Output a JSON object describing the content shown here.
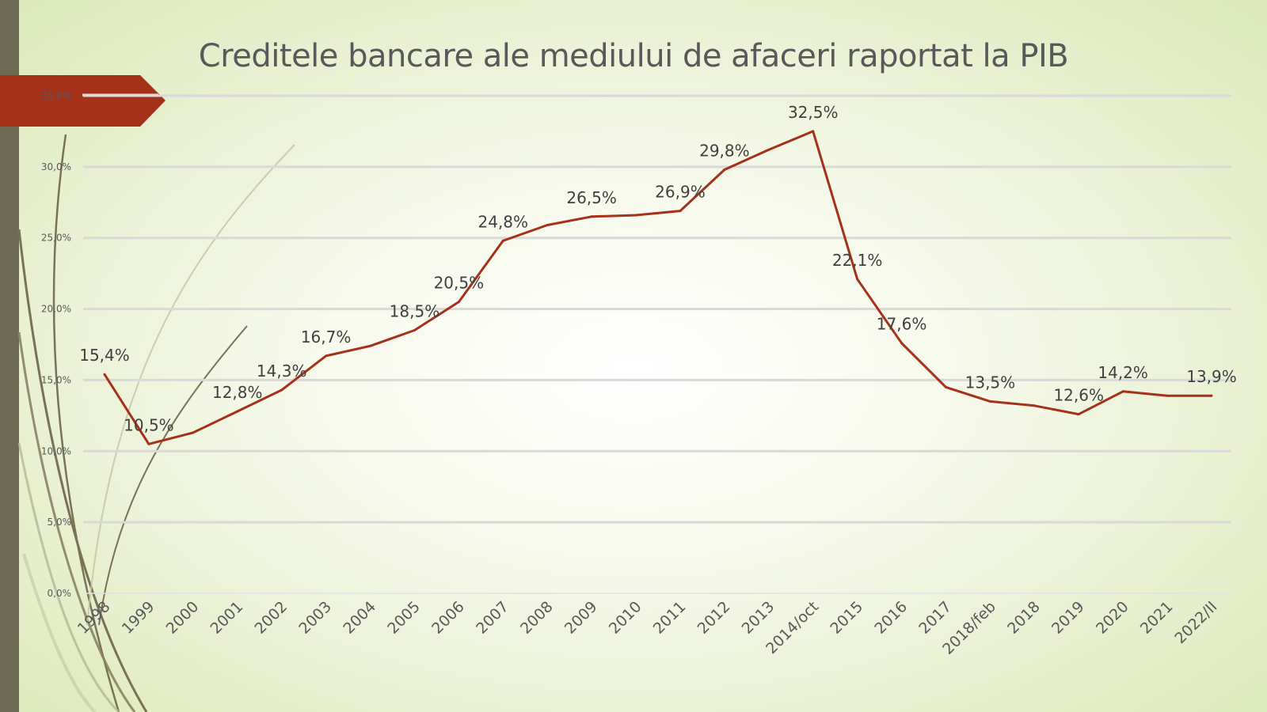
{
  "chart_data": {
    "type": "line",
    "title": "Creditele bancare ale mediului de afaceri raportat la PIB",
    "categories": [
      "1998",
      "1999",
      "2000",
      "2001",
      "2002",
      "2003",
      "2004",
      "2005",
      "2006",
      "2007",
      "2008",
      "2009",
      "2010",
      "2011",
      "2012",
      "2013",
      "2014/oct",
      "2015",
      "2016",
      "2017",
      "2018/feb",
      "2018",
      "2019",
      "2020",
      "2021",
      "2022/II"
    ],
    "series": [
      {
        "values": [
          15.4,
          10.5,
          11.3,
          12.8,
          14.3,
          16.7,
          17.4,
          18.5,
          20.5,
          24.8,
          25.9,
          26.5,
          26.6,
          26.9,
          29.8,
          31.2,
          32.5,
          22.1,
          17.6,
          14.5,
          13.5,
          13.2,
          12.6,
          14.2,
          13.9,
          13.9
        ],
        "color": "#a5311a"
      }
    ],
    "data_labels": [
      {
        "index": 0,
        "text": "15,4%"
      },
      {
        "index": 1,
        "text": "10,5%"
      },
      {
        "index": 3,
        "text": "12,8%"
      },
      {
        "index": 4,
        "text": "14,3%"
      },
      {
        "index": 5,
        "text": "16,7%"
      },
      {
        "index": 7,
        "text": "18,5%"
      },
      {
        "index": 8,
        "text": "20,5%"
      },
      {
        "index": 9,
        "text": "24,8%"
      },
      {
        "index": 11,
        "text": "26,5%"
      },
      {
        "index": 13,
        "text": "26,9%"
      },
      {
        "index": 14,
        "text": "29,8%"
      },
      {
        "index": 16,
        "text": "32,5%"
      },
      {
        "index": 17,
        "text": "22,1%"
      },
      {
        "index": 18,
        "text": "17,6%"
      },
      {
        "index": 20,
        "text": "13,5%"
      },
      {
        "index": 22,
        "text": "12,6%"
      },
      {
        "index": 23,
        "text": "14,2%"
      },
      {
        "index": 25,
        "text": "13,9%"
      }
    ],
    "yticks": [
      "0,0%",
      "5,0%",
      "10,0%",
      "15,0%",
      "20,0%",
      "25,0%",
      "30,0%",
      "35,0%"
    ],
    "ylim": [
      0,
      35
    ],
    "grid": true,
    "legend": "none",
    "xlabel": "",
    "ylabel": ""
  },
  "colors": {
    "accent": "#a5311a",
    "grid": "#d9d9d9",
    "left_bar": "#6f6a53",
    "curves": "#7a7256"
  }
}
